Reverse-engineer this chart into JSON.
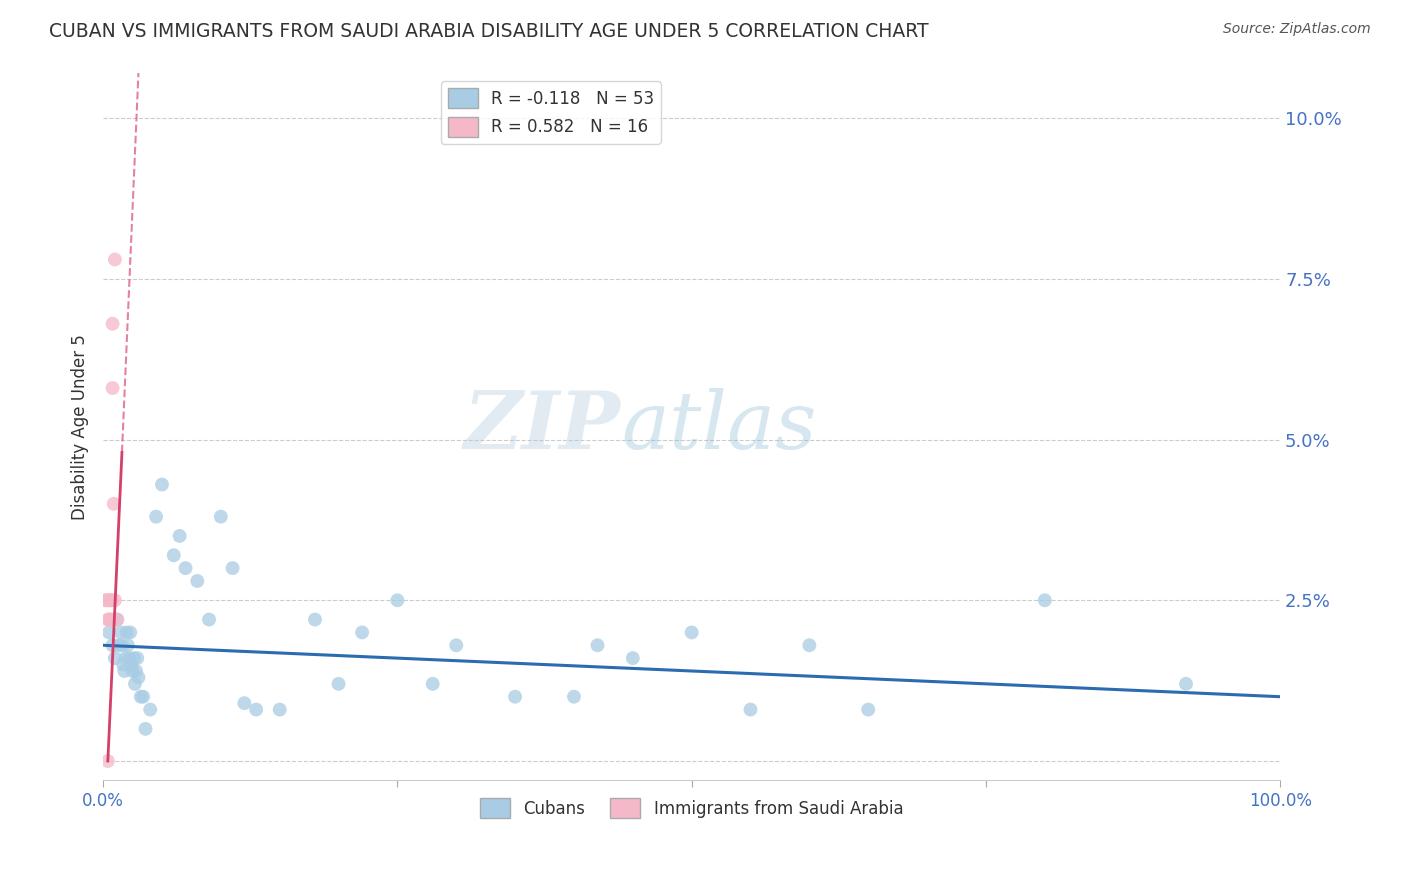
{
  "title": "CUBAN VS IMMIGRANTS FROM SAUDI ARABIA DISABILITY AGE UNDER 5 CORRELATION CHART",
  "source": "Source: ZipAtlas.com",
  "ylabel": "Disability Age Under 5",
  "xlim": [
    0.0,
    1.0
  ],
  "ylim": [
    -0.003,
    0.107
  ],
  "yticks": [
    0.0,
    0.025,
    0.05,
    0.075,
    0.1
  ],
  "ytick_labels": [
    "",
    "2.5%",
    "5.0%",
    "7.5%",
    "10.0%"
  ],
  "xticks": [
    0.0,
    0.25,
    0.5,
    0.75,
    1.0
  ],
  "xtick_labels": [
    "0.0%",
    "",
    "",
    "",
    "100.0%"
  ],
  "blue_R": -0.118,
  "blue_N": 53,
  "pink_R": 0.582,
  "pink_N": 16,
  "blue_color": "#a8cce4",
  "pink_color": "#f4b8c8",
  "blue_line_color": "#2b6cb0",
  "pink_line_color": "#d4406a",
  "axis_color": "#4472c4",
  "watermark_color": "#c8d8e8",
  "blue_line_x0": 0.0,
  "blue_line_y0": 0.018,
  "blue_line_x1": 1.0,
  "blue_line_y1": 0.01,
  "pink_line_solid_x0": 0.004,
  "pink_line_solid_y0": 0.0,
  "pink_line_solid_x1": 0.016,
  "pink_line_solid_y1": 0.048,
  "pink_line_dash_x0": 0.016,
  "pink_line_dash_y0": 0.048,
  "pink_line_dash_x1": 0.03,
  "pink_line_dash_y1": 0.107,
  "blue_scatter_x": [
    0.005,
    0.008,
    0.01,
    0.012,
    0.013,
    0.015,
    0.016,
    0.017,
    0.018,
    0.019,
    0.02,
    0.021,
    0.022,
    0.023,
    0.024,
    0.025,
    0.026,
    0.027,
    0.028,
    0.029,
    0.03,
    0.032,
    0.034,
    0.036,
    0.04,
    0.045,
    0.05,
    0.06,
    0.065,
    0.07,
    0.08,
    0.09,
    0.1,
    0.11,
    0.12,
    0.13,
    0.15,
    0.18,
    0.2,
    0.22,
    0.25,
    0.28,
    0.3,
    0.35,
    0.4,
    0.42,
    0.45,
    0.5,
    0.55,
    0.6,
    0.65,
    0.8,
    0.92
  ],
  "blue_scatter_y": [
    0.02,
    0.018,
    0.016,
    0.022,
    0.018,
    0.02,
    0.018,
    0.015,
    0.014,
    0.016,
    0.02,
    0.018,
    0.016,
    0.02,
    0.015,
    0.014,
    0.016,
    0.012,
    0.014,
    0.016,
    0.013,
    0.01,
    0.01,
    0.005,
    0.008,
    0.038,
    0.043,
    0.032,
    0.035,
    0.03,
    0.028,
    0.022,
    0.038,
    0.03,
    0.009,
    0.008,
    0.008,
    0.022,
    0.012,
    0.02,
    0.025,
    0.012,
    0.018,
    0.01,
    0.01,
    0.018,
    0.016,
    0.02,
    0.008,
    0.018,
    0.008,
    0.025,
    0.012
  ],
  "pink_scatter_x": [
    0.002,
    0.003,
    0.004,
    0.005,
    0.005,
    0.006,
    0.006,
    0.007,
    0.007,
    0.008,
    0.008,
    0.009,
    0.01,
    0.01,
    0.012,
    0.004
  ],
  "pink_scatter_y": [
    0.025,
    0.025,
    0.022,
    0.025,
    0.022,
    0.025,
    0.022,
    0.025,
    0.022,
    0.058,
    0.068,
    0.04,
    0.078,
    0.025,
    0.022,
    0.0
  ]
}
